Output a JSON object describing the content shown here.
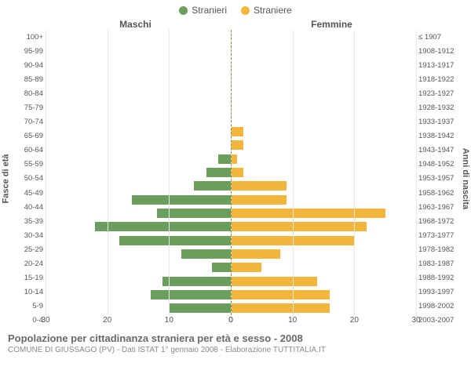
{
  "chart": {
    "type": "population-pyramid",
    "legend": [
      {
        "label": "Stranieri",
        "color": "#6a9e5d"
      },
      {
        "label": "Straniere",
        "color": "#f2b63c"
      }
    ],
    "side_titles": {
      "left": "Maschi",
      "right": "Femmine"
    },
    "y_axis_left_label": "Fasce di età",
    "y_axis_right_label": "Anni di nascita",
    "x_max": 30,
    "x_ticks_left": [
      30,
      20,
      10,
      0
    ],
    "x_ticks_right": [
      0,
      10,
      20,
      30
    ],
    "colors": {
      "male": "#6a9e5d",
      "female": "#f2b63c",
      "grid": "#e8e8e8",
      "center_dash": "#8a8a3a",
      "background": "#ffffff"
    },
    "age_labels": [
      "100+",
      "95-99",
      "90-94",
      "85-89",
      "80-84",
      "75-79",
      "70-74",
      "65-69",
      "60-64",
      "55-59",
      "50-54",
      "45-49",
      "40-44",
      "35-39",
      "30-34",
      "25-29",
      "20-24",
      "15-19",
      "10-14",
      "5-9",
      "0-4"
    ],
    "year_labels": [
      "≤ 1907",
      "1908-1912",
      "1913-1917",
      "1918-1922",
      "1923-1927",
      "1928-1932",
      "1933-1937",
      "1938-1942",
      "1943-1947",
      "1948-1952",
      "1953-1957",
      "1958-1962",
      "1963-1967",
      "1968-1972",
      "1973-1977",
      "1978-1982",
      "1983-1987",
      "1988-1992",
      "1993-1997",
      "1998-2002",
      "2003-2007"
    ],
    "male": [
      0,
      0,
      0,
      0,
      0,
      0,
      0,
      0,
      0,
      2,
      4,
      6,
      16,
      12,
      22,
      18,
      8,
      3,
      11,
      13,
      10
    ],
    "female": [
      0,
      0,
      0,
      0,
      0,
      0,
      0,
      2,
      2,
      1,
      2,
      9,
      9,
      25,
      22,
      20,
      8,
      5,
      14,
      16,
      16
    ]
  },
  "footer": {
    "title": "Popolazione per cittadinanza straniera per età e sesso - 2008",
    "subtitle": "COMUNE DI GIUSSAGO (PV) - Dati ISTAT 1° gennaio 2008 - Elaborazione TUTTITALIA.IT"
  }
}
